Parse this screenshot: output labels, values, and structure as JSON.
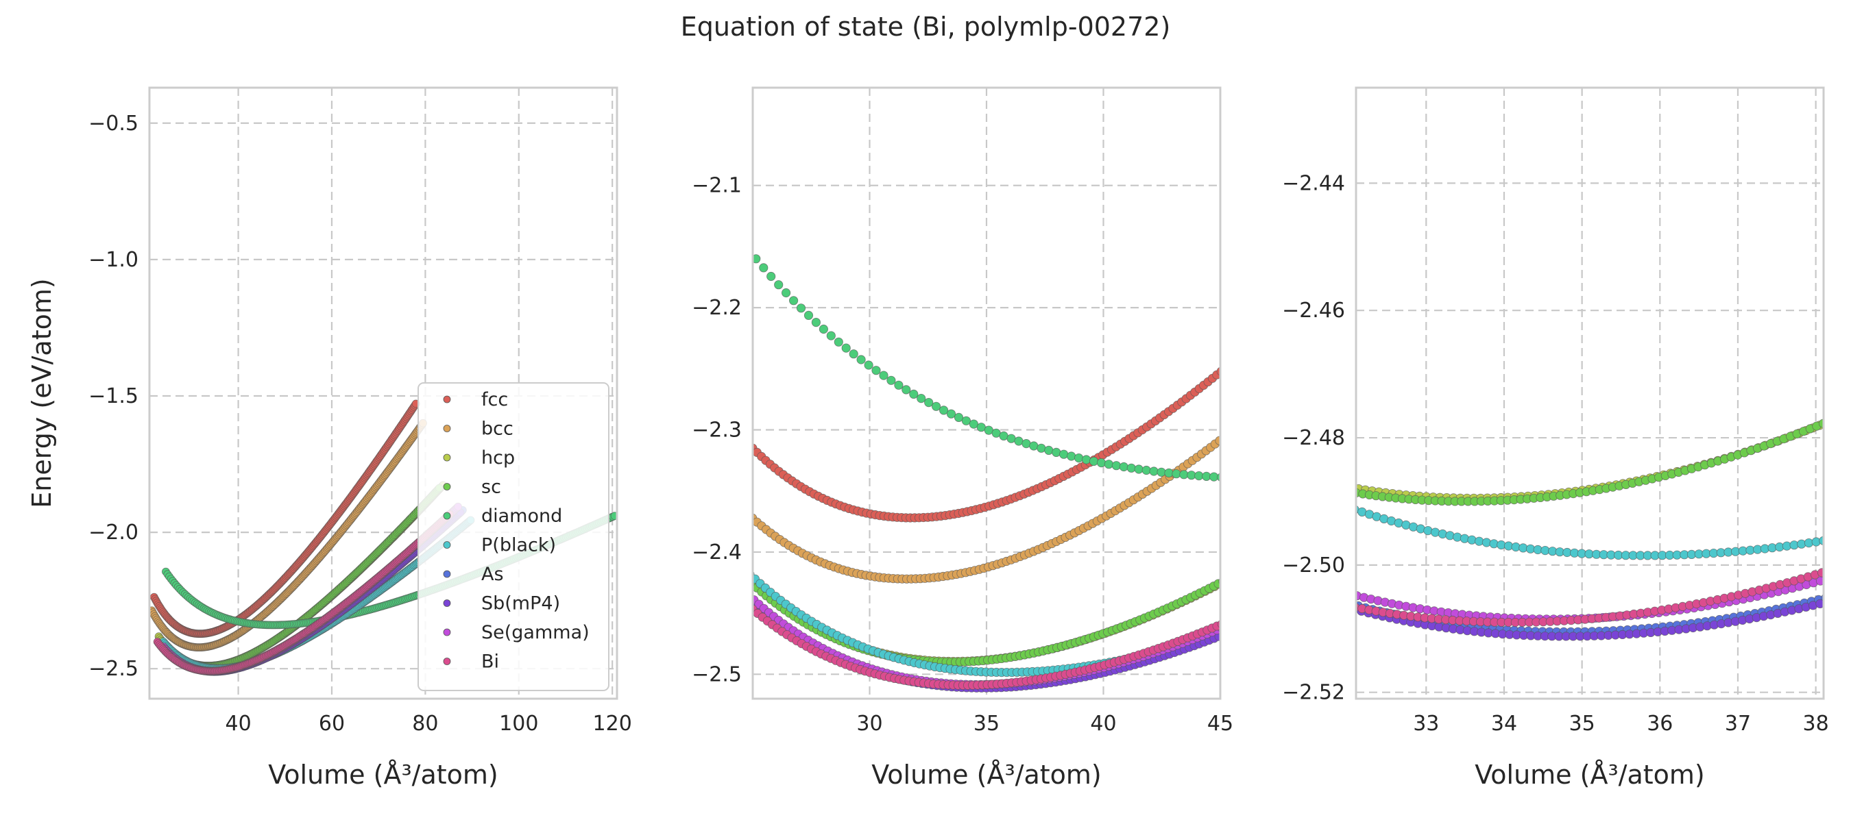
{
  "figure": {
    "title": "Equation of state (Bi, polymlp-00272)"
  },
  "chart_data": [
    {
      "type": "scatter",
      "panel": "full",
      "title": "",
      "xlabel": "Volume (Å³/atom)",
      "ylabel": "Energy (eV/atom)",
      "xlim": [
        21,
        121
      ],
      "ylim": [
        -2.61,
        -0.37
      ],
      "xticks": [
        40,
        60,
        80,
        100,
        120
      ],
      "yticks": [
        -2.5,
        -2.0,
        -1.5,
        -1.0,
        -0.5
      ],
      "grid": true,
      "legend": "lower-right"
    },
    {
      "type": "scatter",
      "panel": "zoom-1",
      "title": "",
      "xlabel": "Volume (Å³/atom)",
      "ylabel": "",
      "xlim": [
        25,
        45
      ],
      "ylim": [
        -2.52,
        -2.02
      ],
      "xticks": [
        30,
        35,
        40,
        45
      ],
      "yticks": [
        -2.5,
        -2.4,
        -2.3,
        -2.2,
        -2.1
      ],
      "grid": true,
      "legend": ""
    },
    {
      "type": "scatter",
      "panel": "zoom-2",
      "title": "",
      "xlabel": "Volume (Å³/atom)",
      "ylabel": "",
      "xlim": [
        32.1,
        38.1
      ],
      "ylim": [
        -2.521,
        -2.425
      ],
      "xticks": [
        33,
        34,
        35,
        36,
        37,
        38
      ],
      "yticks": [
        -2.52,
        -2.5,
        -2.48,
        -2.46,
        -2.44
      ],
      "grid": true,
      "legend": ""
    }
  ],
  "series": [
    {
      "name": "fcc",
      "color": "#db5f57",
      "e0": -2.372,
      "v0": 31.8,
      "b": 0.98,
      "vmin": 22.0,
      "vmax": 78.0
    },
    {
      "name": "bcc",
      "color": "#dba257",
      "e0": -2.422,
      "v0": 31.6,
      "b": 0.9,
      "vmin": 21.5,
      "vmax": 79.5
    },
    {
      "name": "hcp",
      "color": "#b9cc4c",
      "e0": -2.4895,
      "v0": 33.6,
      "b": 0.74,
      "vmin": 23.0,
      "vmax": 83.8
    },
    {
      "name": "sc",
      "color": "#6dcc4c",
      "e0": -2.49,
      "v0": 33.5,
      "b": 0.74,
      "vmin": 24.0,
      "vmax": 83.0
    },
    {
      "name": "diamond",
      "color": "#4ccc7a",
      "e0": -2.34,
      "v0": 47.5,
      "b": 0.43,
      "vmin": 24.5,
      "vmax": 120.5
    },
    {
      "name": "P(black)",
      "color": "#4cc7cc",
      "e0": -2.4985,
      "v0": 35.8,
      "b": 0.6,
      "vmin": 24.0,
      "vmax": 89.7
    },
    {
      "name": "As",
      "color": "#5773db",
      "e0": -2.5105,
      "v0": 34.8,
      "b": 0.64,
      "vmin": 24.5,
      "vmax": 88.0
    },
    {
      "name": "Sb(mP4)",
      "color": "#7a44d6",
      "e0": -2.5112,
      "v0": 34.8,
      "b": 0.64,
      "vmin": 24.2,
      "vmax": 87.5
    },
    {
      "name": "Se(gamma)",
      "color": "#c14cdb",
      "e0": -2.5085,
      "v0": 34.6,
      "b": 0.66,
      "vmin": 24.0,
      "vmax": 87.0
    },
    {
      "name": "Bi",
      "color": "#db4c8e",
      "e0": -2.509,
      "v0": 34.1,
      "b": 0.64,
      "vmin": 22.7,
      "vmax": 85.2
    }
  ]
}
